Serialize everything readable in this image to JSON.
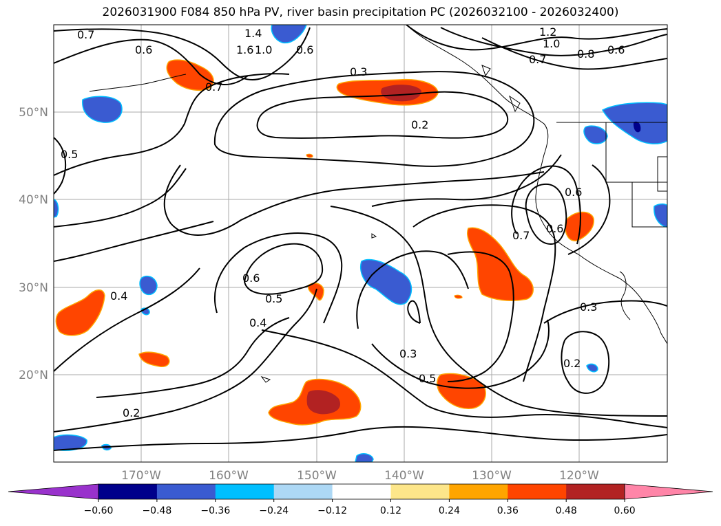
{
  "title": "2026031900 F084 850 hPa PV, river basin precipitation PC (2026032100 - 2026032400)",
  "lat_labels": [
    "50°N",
    "40°N",
    "30°N",
    "20°N"
  ],
  "lon_labels": [
    "170°W",
    "160°W",
    "150°W",
    "140°W",
    "130°W",
    "120°W"
  ],
  "contour_labels": [
    "0.7",
    "0.6",
    "1.4",
    "1.0",
    "1.6",
    "0.6",
    "0.7",
    "0.3",
    "1.2",
    "1.0",
    "0.8",
    "0.6",
    "0.7",
    "0.2",
    "0.5",
    "0.6",
    "0.6",
    "0.7",
    "0.4",
    "0.5",
    "0.4",
    "0.6",
    "0.5",
    "0.3",
    "0.2",
    "0.2",
    "0.3"
  ],
  "colorbar": {
    "ticks": [
      "−0.60",
      "−0.48",
      "−0.36",
      "−0.24",
      "−0.12",
      "0.12",
      "0.24",
      "0.36",
      "0.48",
      "0.60"
    ],
    "colors": [
      "#9932cc",
      "#00008b",
      "#3a5bd1",
      "#00bfff",
      "#add8f5",
      "#ffffff",
      "#fde68a",
      "#ffa500",
      "#ff4500",
      "#b22222",
      "#ff85a8"
    ]
  }
}
